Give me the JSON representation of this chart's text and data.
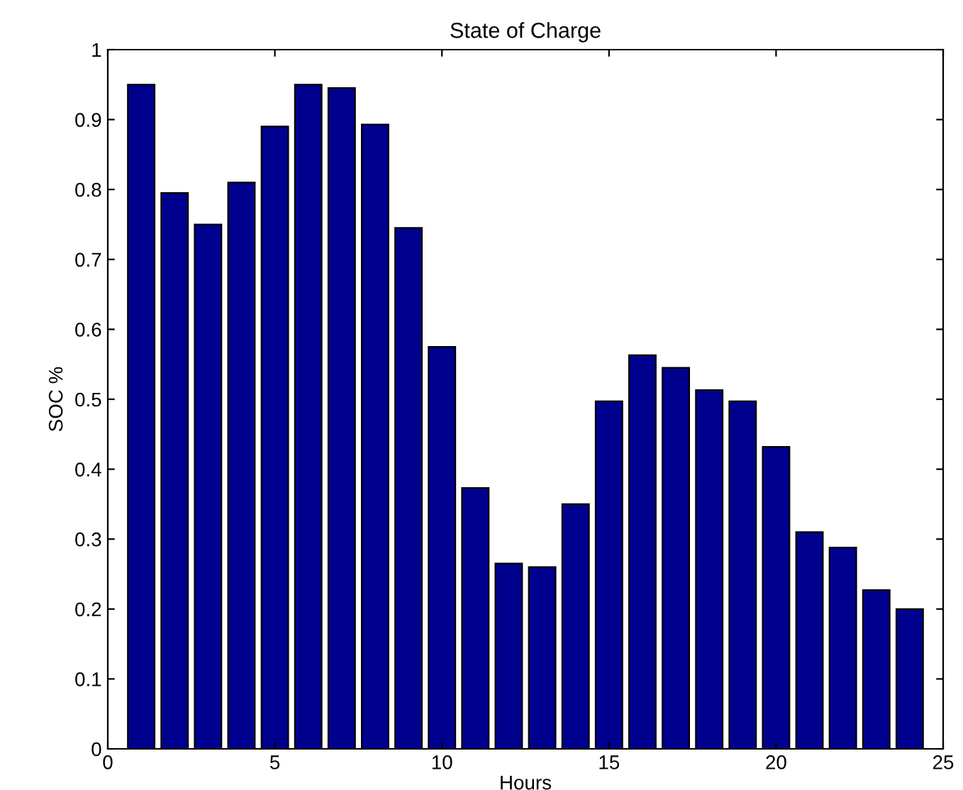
{
  "chart_data": {
    "type": "bar",
    "title": "State of Charge",
    "xlabel": "Hours",
    "ylabel": "SOC %",
    "x": [
      1,
      2,
      3,
      4,
      5,
      6,
      7,
      8,
      9,
      10,
      11,
      12,
      13,
      14,
      15,
      16,
      17,
      18,
      19,
      20,
      21,
      22,
      23,
      24
    ],
    "values": [
      0.95,
      0.795,
      0.75,
      0.81,
      0.89,
      0.95,
      0.945,
      0.893,
      0.745,
      0.575,
      0.373,
      0.265,
      0.26,
      0.35,
      0.497,
      0.563,
      0.545,
      0.513,
      0.497,
      0.432,
      0.31,
      0.288,
      0.227,
      0.2
    ],
    "color": "#00008f",
    "xlim": [
      0,
      25
    ],
    "xticks": [
      0,
      5,
      10,
      15,
      20,
      25
    ],
    "ylim": [
      0,
      1
    ],
    "yticks": [
      0,
      0.1,
      0.2,
      0.3,
      0.4,
      0.5,
      0.6,
      0.7,
      0.8,
      0.9,
      1
    ],
    "grid": false
  }
}
